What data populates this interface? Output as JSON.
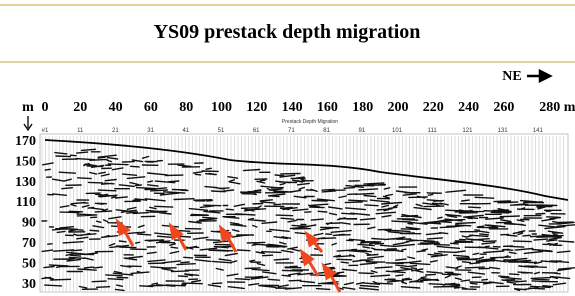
{
  "header": {
    "title": "YS09 prestack depth migration"
  },
  "figure": {
    "direction": "NE",
    "distance_unit": "m",
    "distance_labels": [
      "0",
      "20",
      "40",
      "60",
      "80",
      "100",
      "120",
      "140",
      "160",
      "180",
      "200",
      "220",
      "240",
      "260",
      "280 m"
    ],
    "section_caption": "Prestack Depth Migration",
    "trace_labels": [
      "#1",
      "11",
      "21",
      "31",
      "41",
      "51",
      "61",
      "71",
      "81",
      "91",
      "101",
      "111",
      "121",
      "131",
      "141"
    ],
    "depth_labels": [
      "170",
      "150",
      "130",
      "110",
      "90",
      "70",
      "50",
      "30"
    ]
  }
}
